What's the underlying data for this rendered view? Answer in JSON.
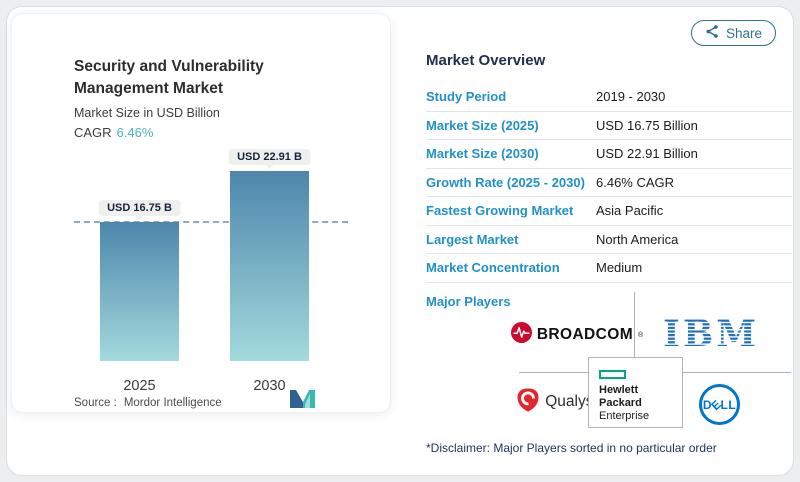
{
  "share_button": {
    "label": "Share"
  },
  "chart_card": {
    "title": "Security and Vulnerability Management Market",
    "subtitle": "Market Size in USD Billion",
    "cagr_label": "CAGR",
    "cagr_value": "6.46%",
    "source_label": "Source :",
    "source_name": "Mordor Intelligence"
  },
  "chart_data": {
    "type": "bar",
    "title": "Security and Vulnerability Management Market",
    "ylabel": "Market Size in USD Billion",
    "unit": "USD Billion",
    "categories": [
      "2025",
      "2030"
    ],
    "values": [
      16.75,
      22.91
    ],
    "bar_labels": [
      "USD 16.75 B",
      "USD 22.91 B"
    ],
    "cagr": "6.46%",
    "reference_line": 16.75,
    "grid": false,
    "legend": false,
    "bar_color_top": "#4e86ac",
    "bar_color_bottom": "#a2dadd"
  },
  "overview": {
    "heading": "Market Overview",
    "rows": [
      {
        "label": "Study Period",
        "value": "2019 - 2030"
      },
      {
        "label": "Market Size (2025)",
        "value": "USD 16.75 Billion"
      },
      {
        "label": "Market Size (2030)",
        "value": "USD 22.91 Billion"
      },
      {
        "label": "Growth Rate (2025 - 2030)",
        "value": "6.46% CAGR"
      },
      {
        "label": "Fastest Growing Market",
        "value": "Asia Pacific"
      },
      {
        "label": "Largest Market",
        "value": "North America"
      },
      {
        "label": "Market Concentration",
        "value": "Medium"
      }
    ],
    "major_players_label": "Major Players",
    "disclaimer": "*Disclaimer: Major Players sorted in no particular order"
  },
  "logos": {
    "broadcom": {
      "text": "BROADCOM",
      "reg": "®",
      "color": "#cc092f"
    },
    "ibm": {
      "text": "IBM",
      "color": "#1f70c1"
    },
    "qualys": {
      "text": "Qualys.",
      "color": "#e3262e"
    },
    "hpe": {
      "line1": "Hewlett Packard",
      "line2": "Enterprise",
      "color": "#01a982"
    },
    "dell": {
      "letters": [
        "D",
        "E",
        "L",
        "L"
      ],
      "color": "#0076ce"
    }
  },
  "colors": {
    "row_label_teal": "#2191c9",
    "heading_navy": "#1e2f4d",
    "cagr_teal": "#4db0b8",
    "share_teal": "#2e7290",
    "dashed_line": "#90a9c0"
  }
}
